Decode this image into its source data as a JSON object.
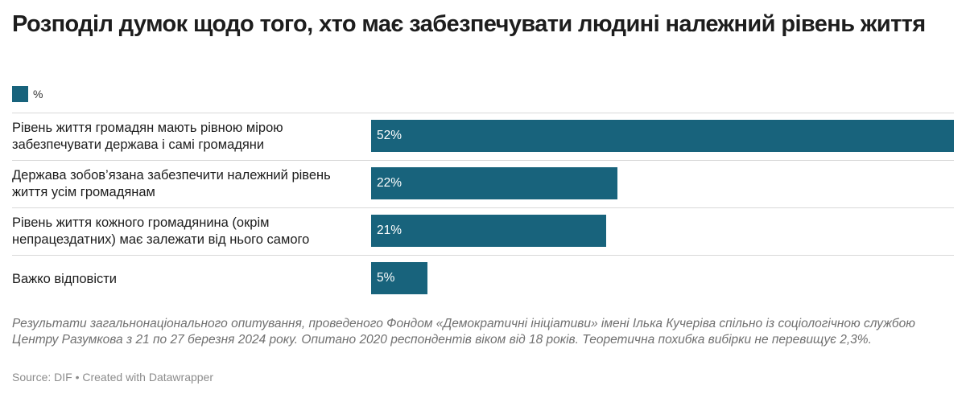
{
  "title": "Розподіл думок щодо того, хто має забезпечувати людині належний рівень життя",
  "legend": {
    "label": "%",
    "color": "#18637c"
  },
  "chart_data": {
    "type": "bar",
    "orientation": "horizontal",
    "title": "Розподіл думок щодо того, хто має забезпечувати людині належний рівень життя",
    "xlim": [
      0,
      52
    ],
    "series": [
      {
        "name": "%",
        "color": "#18637c",
        "values": [
          52,
          22,
          21,
          5
        ]
      }
    ],
    "categories": [
      "Рівень життя громадян мають рівною мірою забезпечувати держава і самі громадяни",
      "Держава зобов’язана забезпечити належний рівень життя усім громадянам",
      "Рівень життя кожного громадянина (окрім непрацездатних) має залежати від нього самого",
      "Важко відповісти"
    ],
    "value_labels": [
      "52%",
      "22%",
      "21%",
      "5%"
    ]
  },
  "note": "Результати загальнонаціонального опитування, проведеного Фондом «Демократичні ініціативи» імені Ілька Кучеріва спільно із соціологічною службою Центру Разумкова з 21  по 27 березня 2024 року. Опитано 2020 респондентів віком від 18 років. Теоретична похибка вибірки не перевищує 2,3%.",
  "source": "Source: DIF • Created with Datawrapper"
}
